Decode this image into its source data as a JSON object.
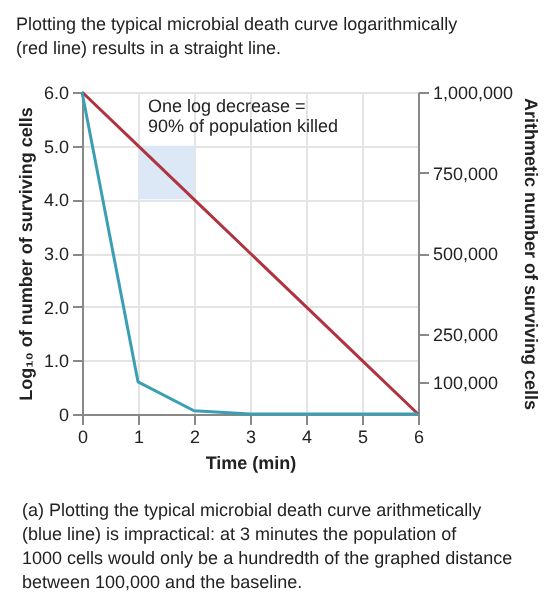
{
  "chart_data": {
    "type": "line",
    "title": "Plotting the typical microbial death curve logarithmically (red line) results in a straight line.",
    "xlabel": "Time (min)",
    "ylabel": "Log₁₀ of number of surviving cells",
    "y2label": "Arithmetic number of surviving cells",
    "x": [
      0,
      1,
      2,
      3,
      4,
      5,
      6
    ],
    "series": [
      {
        "color": "#b03340",
        "values": [
          6,
          5,
          4,
          3,
          2,
          1,
          0
        ]
      },
      {
        "color": "#3a9fb3",
        "axis": "y2",
        "values": [
          1000000,
          100000,
          10000,
          0,
          0,
          0,
          0
        ]
      }
    ],
    "xlim": [
      0,
      6
    ],
    "xticks": [
      0,
      1,
      2,
      3,
      4,
      5,
      6
    ],
    "ylim": [
      0,
      6
    ],
    "yticks": [
      0,
      {
        "value": 1,
        "label": "1.0"
      },
      {
        "value": 2,
        "label": "2.0"
      },
      {
        "value": 3,
        "label": "3.0"
      },
      {
        "value": 4,
        "label": "4.0"
      },
      {
        "value": 5,
        "label": "5.0"
      },
      {
        "value": 6,
        "label": "6.0"
      }
    ],
    "y2lim": [
      0,
      1000000
    ],
    "y2ticks": [
      {
        "value": 100000,
        "label": "100,000"
      },
      {
        "value": 250000,
        "label": "250,000"
      },
      {
        "value": 500000,
        "label": "500,000"
      },
      {
        "value": 750000,
        "label": "750,000"
      },
      {
        "value": 1000000,
        "label": "1,000,000"
      }
    ],
    "bands": [
      {
        "axis": "y",
        "from": 4,
        "to": 5,
        "color": "#dce8f5",
        "label": "One log decrease = 90% of population killed"
      }
    ],
    "annotations": [
      "(a) Plotting the typical microbial death curve arithmetically (blue line) is impractical: at 3 minutes the population of 1000 cells would only be a hundredth of the graphed distance between 100,000 and the baseline."
    ],
    "grid": true,
    "marker": "none",
    "line_style": "solid"
  }
}
